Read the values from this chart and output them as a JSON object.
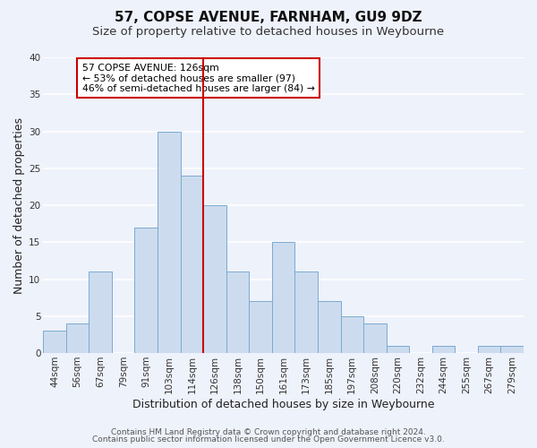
{
  "title": "57, COPSE AVENUE, FARNHAM, GU9 9DZ",
  "subtitle": "Size of property relative to detached houses in Weybourne",
  "xlabel": "Distribution of detached houses by size in Weybourne",
  "ylabel": "Number of detached properties",
  "bar_labels": [
    "44sqm",
    "56sqm",
    "67sqm",
    "79sqm",
    "91sqm",
    "103sqm",
    "114sqm",
    "126sqm",
    "138sqm",
    "150sqm",
    "161sqm",
    "173sqm",
    "185sqm",
    "197sqm",
    "208sqm",
    "220sqm",
    "232sqm",
    "244sqm",
    "255sqm",
    "267sqm",
    "279sqm"
  ],
  "bar_values": [
    3,
    4,
    11,
    0,
    17,
    30,
    24,
    20,
    11,
    7,
    15,
    11,
    7,
    5,
    4,
    1,
    0,
    1,
    0,
    1,
    1
  ],
  "bar_color": "#ccdcee",
  "bar_edge_color": "#7aaad0",
  "marker_index": 7,
  "marker_color": "#cc0000",
  "annotation_lines": [
    "57 COPSE AVENUE: 126sqm",
    "← 53% of detached houses are smaller (97)",
    "46% of semi-detached houses are larger (84) →"
  ],
  "annotation_box_color": "#ffffff",
  "annotation_box_edge": "#cc0000",
  "ylim": [
    0,
    40
  ],
  "yticks": [
    0,
    5,
    10,
    15,
    20,
    25,
    30,
    35,
    40
  ],
  "footer_line1": "Contains HM Land Registry data © Crown copyright and database right 2024.",
  "footer_line2": "Contains public sector information licensed under the Open Government Licence v3.0.",
  "background_color": "#eef2fb",
  "grid_color": "#ffffff",
  "title_fontsize": 11,
  "subtitle_fontsize": 9.5,
  "axis_label_fontsize": 9,
  "tick_fontsize": 7.5,
  "footer_fontsize": 6.5
}
